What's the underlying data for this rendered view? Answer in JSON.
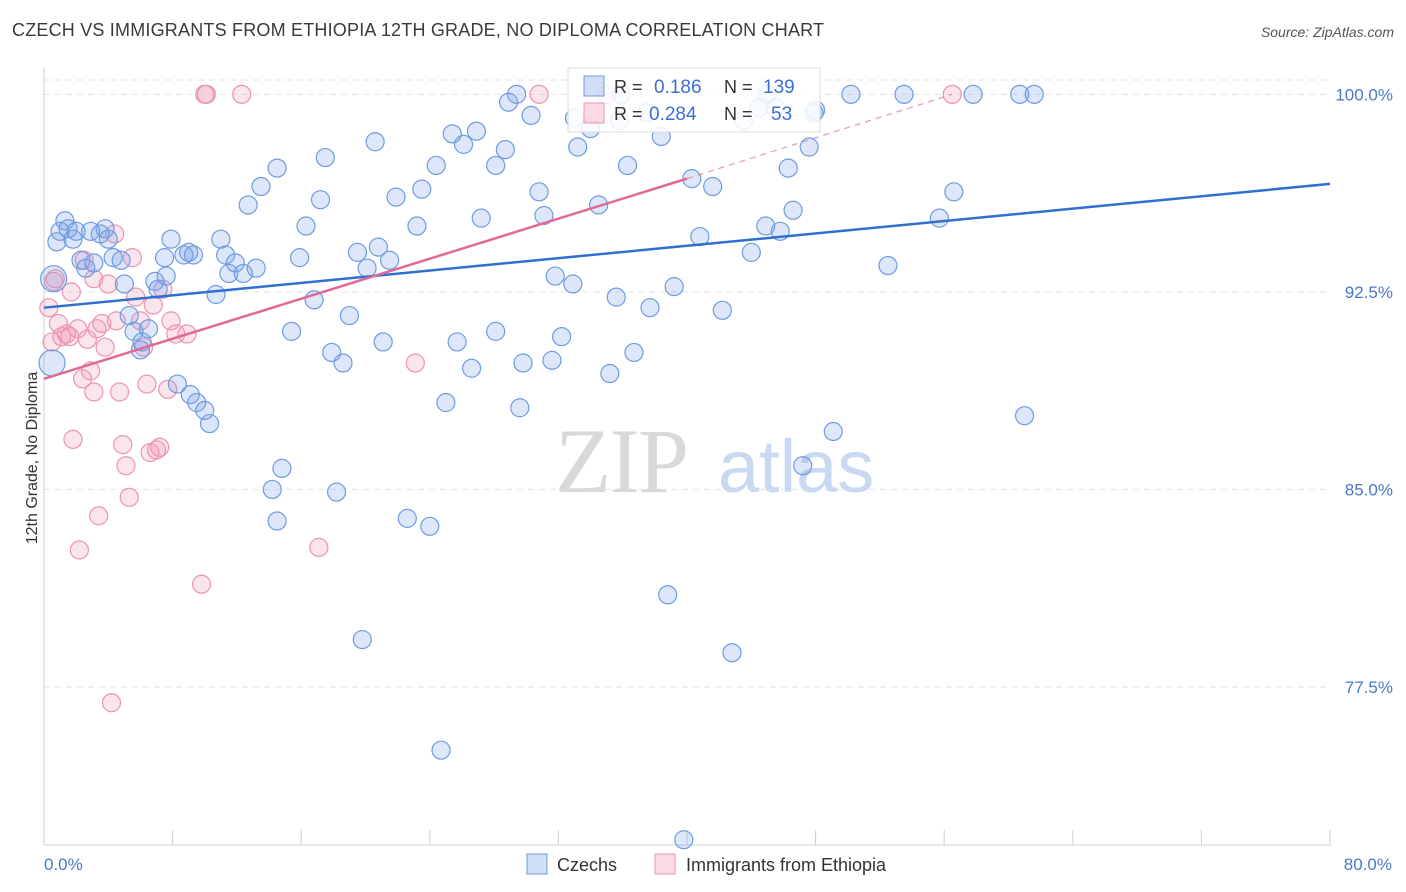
{
  "header": {
    "title": "CZECH VS IMMIGRANTS FROM ETHIOPIA 12TH GRADE, NO DIPLOMA CORRELATION CHART",
    "source": "Source: ZipAtlas.com"
  },
  "watermark": {
    "part1": "ZIP",
    "part2": "atlas"
  },
  "legend": {
    "rows": [
      {
        "r_label": "R =",
        "r_value": "0.186",
        "n_label": "N =",
        "n_value": "139"
      },
      {
        "r_label": "R =",
        "r_value": "0.284",
        "n_label": "N =",
        "n_value": "53"
      }
    ]
  },
  "bottom_legend": {
    "czechs": "Czechs",
    "ethiopia": "Immigrants from Ethiopia"
  },
  "colors": {
    "czech_fill": "rgba(120,160,230,0.25)",
    "czech_stroke": "#6f9be0",
    "czech_line": "#2f6fcf",
    "eth_fill": "rgba(240,150,180,0.25)",
    "eth_stroke": "#ec93b3",
    "eth_line": "#e06a94",
    "grid": "#e3e3e3",
    "tick_text": "#4a78c8"
  },
  "chart_data": {
    "type": "scatter",
    "title": "CZECH VS IMMIGRANTS FROM ETHIOPIA 12TH GRADE, NO DIPLOMA CORRELATION CHART",
    "xlabel": "",
    "ylabel": "12th Grade, No Diploma",
    "xlim": [
      0,
      80
    ],
    "ylim": [
      71.5,
      101
    ],
    "x_tick_labels": [
      "0.0%",
      "80.0%"
    ],
    "y_ticks": [
      77.5,
      85.0,
      92.5,
      100.0
    ],
    "y_tick_labels": [
      "77.5%",
      "85.0%",
      "92.5%",
      "100.0%"
    ],
    "grid": true,
    "legend_position": "top-center",
    "series": [
      {
        "name": "Czechs",
        "r": 0.186,
        "n": 139,
        "trend": {
          "x": [
            0,
            80
          ],
          "y": [
            91.9,
            96.6
          ]
        },
        "points": [
          [
            0.5,
            89.8
          ],
          [
            0.6,
            93.0
          ],
          [
            0.8,
            94.4
          ],
          [
            1.0,
            94.8
          ],
          [
            1.3,
            95.2
          ],
          [
            1.5,
            94.9
          ],
          [
            1.8,
            94.5
          ],
          [
            2.0,
            94.8
          ],
          [
            2.3,
            93.7
          ],
          [
            2.6,
            93.4
          ],
          [
            2.9,
            94.8
          ],
          [
            3.1,
            93.6
          ],
          [
            3.5,
            94.7
          ],
          [
            3.8,
            94.9
          ],
          [
            4.0,
            94.5
          ],
          [
            4.3,
            93.8
          ],
          [
            4.8,
            93.7
          ],
          [
            5.0,
            92.8
          ],
          [
            5.3,
            91.6
          ],
          [
            5.6,
            91.0
          ],
          [
            6.0,
            90.3
          ],
          [
            6.1,
            90.6
          ],
          [
            6.5,
            91.1
          ],
          [
            6.9,
            92.9
          ],
          [
            7.1,
            92.6
          ],
          [
            7.5,
            93.8
          ],
          [
            7.6,
            93.1
          ],
          [
            7.9,
            94.5
          ],
          [
            8.3,
            89.0
          ],
          [
            8.7,
            93.9
          ],
          [
            9.0,
            94.0
          ],
          [
            9.1,
            88.6
          ],
          [
            9.3,
            93.9
          ],
          [
            9.5,
            88.3
          ],
          [
            10.0,
            88.0
          ],
          [
            10.3,
            87.5
          ],
          [
            10.7,
            92.4
          ],
          [
            11.0,
            94.5
          ],
          [
            11.3,
            93.9
          ],
          [
            11.5,
            93.2
          ],
          [
            11.9,
            93.6
          ],
          [
            12.4,
            93.2
          ],
          [
            12.7,
            95.8
          ],
          [
            13.2,
            93.4
          ],
          [
            13.5,
            96.5
          ],
          [
            14.5,
            97.2
          ],
          [
            14.2,
            85.0
          ],
          [
            14.8,
            85.8
          ],
          [
            14.5,
            83.8
          ],
          [
            15.4,
            91.0
          ],
          [
            15.9,
            93.8
          ],
          [
            16.3,
            95.0
          ],
          [
            16.8,
            92.2
          ],
          [
            17.2,
            96.0
          ],
          [
            17.5,
            97.6
          ],
          [
            17.9,
            90.2
          ],
          [
            18.2,
            84.9
          ],
          [
            18.6,
            89.8
          ],
          [
            19.0,
            91.6
          ],
          [
            19.5,
            94.0
          ],
          [
            19.8,
            79.3
          ],
          [
            20.1,
            93.4
          ],
          [
            20.6,
            98.2
          ],
          [
            20.8,
            94.2
          ],
          [
            21.1,
            90.6
          ],
          [
            21.5,
            93.7
          ],
          [
            21.9,
            96.1
          ],
          [
            22.6,
            83.9
          ],
          [
            23.2,
            95.0
          ],
          [
            23.5,
            96.4
          ],
          [
            24.0,
            83.6
          ],
          [
            24.4,
            97.3
          ],
          [
            24.7,
            75.1
          ],
          [
            25.0,
            88.3
          ],
          [
            25.4,
            98.5
          ],
          [
            25.7,
            90.6
          ],
          [
            26.1,
            98.1
          ],
          [
            26.6,
            89.6
          ],
          [
            26.9,
            98.6
          ],
          [
            27.2,
            95.3
          ],
          [
            28.1,
            97.3
          ],
          [
            28.1,
            91.0
          ],
          [
            28.9,
            99.7
          ],
          [
            28.7,
            97.9
          ],
          [
            29.4,
            100.0
          ],
          [
            29.6,
            88.1
          ],
          [
            29.8,
            89.8
          ],
          [
            30.3,
            99.2
          ],
          [
            30.8,
            96.3
          ],
          [
            31.1,
            95.4
          ],
          [
            31.6,
            89.9
          ],
          [
            31.8,
            93.1
          ],
          [
            32.2,
            90.8
          ],
          [
            32.9,
            92.8
          ],
          [
            33.0,
            99.1
          ],
          [
            33.2,
            98.0
          ],
          [
            34.0,
            98.7
          ],
          [
            34.5,
            95.8
          ],
          [
            35.2,
            89.4
          ],
          [
            35.6,
            92.3
          ],
          [
            35.8,
            99.0
          ],
          [
            35.9,
            100.0
          ],
          [
            36.3,
            97.3
          ],
          [
            36.7,
            90.2
          ],
          [
            37.5,
            99.3
          ],
          [
            37.7,
            91.9
          ],
          [
            38.4,
            98.4
          ],
          [
            38.8,
            81.0
          ],
          [
            39.2,
            92.7
          ],
          [
            40.3,
            96.8
          ],
          [
            40.8,
            94.6
          ],
          [
            41.6,
            96.5
          ],
          [
            42.2,
            91.8
          ],
          [
            42.8,
            78.8
          ],
          [
            43.5,
            99.0
          ],
          [
            44.0,
            94.0
          ],
          [
            44.5,
            99.5
          ],
          [
            44.9,
            95.0
          ],
          [
            45.0,
            100.0
          ],
          [
            45.5,
            99.5
          ],
          [
            45.8,
            94.8
          ],
          [
            46.3,
            97.2
          ],
          [
            46.6,
            95.6
          ],
          [
            47.2,
            85.9
          ],
          [
            47.6,
            98.0
          ],
          [
            47.9,
            99.3
          ],
          [
            48.0,
            99.4
          ],
          [
            49.1,
            87.2
          ],
          [
            50.2,
            100.0
          ],
          [
            52.5,
            93.5
          ],
          [
            53.5,
            100.0
          ],
          [
            55.7,
            95.3
          ],
          [
            56.6,
            96.3
          ],
          [
            57.8,
            100.0
          ],
          [
            60.7,
            100.0
          ],
          [
            61.0,
            87.8
          ],
          [
            61.6,
            100.0
          ],
          [
            39.8,
            71.7
          ]
        ]
      },
      {
        "name": "Immigrants from Ethiopia",
        "r": 0.284,
        "n": 53,
        "trend": {
          "x": [
            0,
            40
          ],
          "y": [
            89.2,
            96.8
          ]
        },
        "trend_dashed": {
          "x": [
            40,
            56.5
          ],
          "y": [
            96.8,
            100.0
          ]
        },
        "points": [
          [
            0.3,
            91.9
          ],
          [
            0.5,
            90.6
          ],
          [
            0.6,
            92.9
          ],
          [
            0.7,
            93.0
          ],
          [
            0.9,
            91.3
          ],
          [
            1.1,
            90.8
          ],
          [
            1.4,
            90.9
          ],
          [
            1.6,
            90.8
          ],
          [
            1.7,
            92.5
          ],
          [
            1.8,
            86.9
          ],
          [
            2.1,
            91.1
          ],
          [
            2.2,
            82.7
          ],
          [
            2.4,
            89.2
          ],
          [
            2.5,
            93.7
          ],
          [
            2.7,
            90.7
          ],
          [
            2.9,
            89.5
          ],
          [
            3.1,
            93.0
          ],
          [
            3.1,
            88.7
          ],
          [
            3.3,
            91.1
          ],
          [
            3.4,
            84.0
          ],
          [
            3.6,
            91.3
          ],
          [
            3.8,
            90.4
          ],
          [
            4.0,
            92.8
          ],
          [
            4.2,
            76.9
          ],
          [
            4.4,
            94.7
          ],
          [
            4.5,
            91.4
          ],
          [
            4.7,
            88.7
          ],
          [
            4.9,
            86.7
          ],
          [
            5.1,
            85.9
          ],
          [
            5.3,
            84.7
          ],
          [
            5.5,
            93.8
          ],
          [
            5.7,
            92.3
          ],
          [
            6.0,
            91.4
          ],
          [
            6.2,
            90.4
          ],
          [
            6.4,
            89.0
          ],
          [
            6.6,
            86.4
          ],
          [
            6.8,
            92.0
          ],
          [
            7.0,
            86.5
          ],
          [
            7.2,
            86.6
          ],
          [
            7.4,
            92.6
          ],
          [
            7.7,
            88.8
          ],
          [
            7.9,
            91.4
          ],
          [
            8.2,
            90.9
          ],
          [
            8.9,
            90.9
          ],
          [
            9.8,
            81.4
          ],
          [
            10.0,
            100.0
          ],
          [
            10.1,
            100.0
          ],
          [
            12.3,
            100.0
          ],
          [
            17.1,
            82.8
          ],
          [
            23.1,
            89.8
          ],
          [
            30.8,
            100.0
          ],
          [
            35.0,
            100.0
          ],
          [
            56.5,
            100.0
          ]
        ]
      }
    ]
  }
}
